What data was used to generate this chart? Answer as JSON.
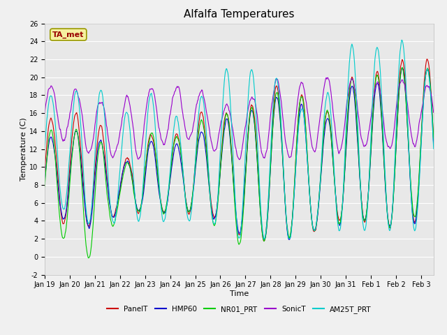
{
  "title": "Alfalfa Temperatures",
  "xlabel": "Time",
  "ylabel": "Temperature (C)",
  "ylim": [
    -2,
    26
  ],
  "x_tick_labels": [
    "Jan 19",
    "Jan 20",
    "Jan 21",
    "Jan 22",
    "Jan 23",
    "Jan 24",
    "Jan 25",
    "Jan 26",
    "Jan 27",
    "Jan 28",
    "Jan 29",
    "Jan 30",
    "Jan 31",
    "Feb 1",
    "Feb 2",
    "Feb 3"
  ],
  "x_tick_positions": [
    0,
    1,
    2,
    3,
    4,
    5,
    6,
    7,
    8,
    9,
    10,
    11,
    12,
    13,
    14,
    15
  ],
  "series": {
    "PanelT": {
      "color": "#cc0000",
      "lw": 0.8
    },
    "HMP60": {
      "color": "#0000cc",
      "lw": 0.8
    },
    "NR01_PRT": {
      "color": "#00cc00",
      "lw": 0.8
    },
    "SonicT": {
      "color": "#9900cc",
      "lw": 0.8
    },
    "AM25T_PRT": {
      "color": "#00cccc",
      "lw": 0.8
    }
  },
  "legend_order": [
    "PanelT",
    "HMP60",
    "NR01_PRT",
    "SonicT",
    "AM25T_PRT"
  ],
  "annotation_text": "TA_met",
  "annotation_color": "#990000",
  "annotation_bg": "#f5f0a0",
  "annotation_border": "#999900",
  "fig_bg": "#f0f0f0",
  "plot_bg": "#e8e8e8",
  "grid_color": "#ffffff",
  "panel_mins": [
    4,
    4,
    3,
    5,
    5,
    5,
    5,
    4,
    2,
    2,
    2,
    3,
    4,
    4,
    3,
    4
  ],
  "panel_maxs": [
    15,
    16,
    16,
    10,
    14,
    13,
    16,
    16,
    16,
    19,
    19,
    15,
    20,
    20,
    22,
    22
  ],
  "hmp_mins": [
    4,
    4,
    3,
    5,
    5,
    5,
    5,
    4,
    2,
    2,
    2,
    3,
    4,
    4,
    3,
    4
  ],
  "hmp_maxs": [
    13,
    14,
    14,
    10,
    13,
    12,
    14,
    15,
    16,
    18,
    18,
    14,
    19,
    19,
    21,
    21
  ],
  "nr01_mins": [
    2,
    2,
    -1,
    5,
    5,
    5,
    5,
    3,
    1,
    2,
    2,
    3,
    4,
    4,
    3,
    5
  ],
  "nr01_maxs": [
    14,
    14,
    14,
    9,
    14,
    13,
    15,
    16,
    16,
    18,
    19,
    15,
    20,
    20,
    21,
    21
  ],
  "sonic_mins": [
    13,
    13,
    11,
    11,
    11,
    13,
    13,
    12,
    11,
    11,
    11,
    12,
    12,
    12,
    12,
    13
  ],
  "sonic_maxs": [
    19,
    19,
    18,
    17,
    19,
    19,
    19,
    17,
    17,
    20,
    19,
    20,
    20,
    19,
    20,
    19
  ],
  "am25_mins": [
    6,
    5,
    3,
    4,
    4,
    4,
    4,
    3,
    2,
    2,
    2,
    3,
    3,
    3,
    3,
    3
  ],
  "am25_maxs": [
    18,
    18,
    20,
    15,
    19,
    15,
    17,
    21,
    21,
    21,
    17,
    16,
    24,
    23,
    25,
    21
  ],
  "noise_scale": 0.4
}
